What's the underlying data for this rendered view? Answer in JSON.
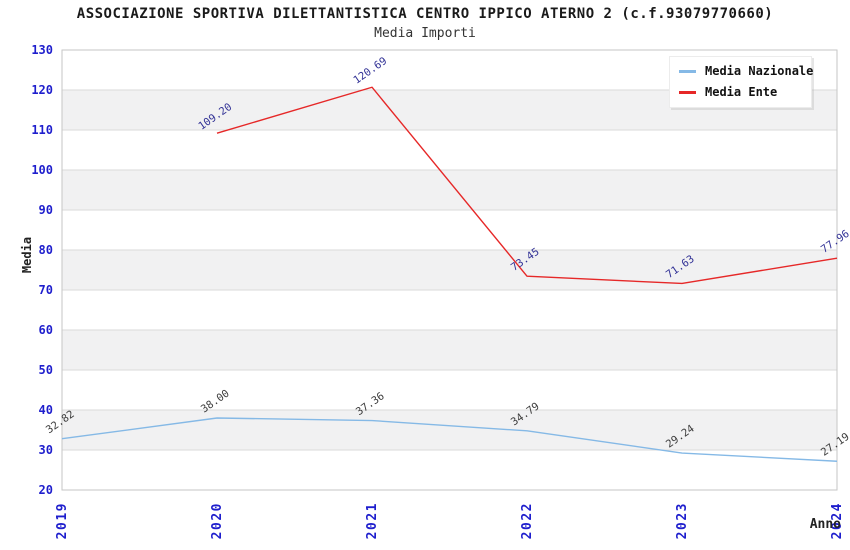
{
  "header": {
    "title": "ASSOCIAZIONE SPORTIVA DILETTANTISTICA CENTRO IPPICO ATERNO 2 (c.f.93079770660)",
    "subtitle": "Media Importi"
  },
  "axes": {
    "x_title": "Anno",
    "y_title": "Media"
  },
  "legend": {
    "position": "top-right",
    "items": [
      {
        "label": "Media Nazionale",
        "color": "#85b9e6"
      },
      {
        "label": "Media Ente",
        "color": "#e62828"
      }
    ]
  },
  "chart_data": {
    "type": "line",
    "title": "Media Importi",
    "xlabel": "Anno",
    "ylabel": "Media",
    "x": [
      "2019",
      "2020",
      "2021",
      "2022",
      "2023",
      "2024"
    ],
    "series": [
      {
        "name": "Media Nazionale",
        "color": "#85b9e6",
        "label_color": "#3c3c3c",
        "values": [
          32.82,
          38.0,
          37.36,
          34.79,
          29.24,
          27.19
        ],
        "labels": [
          "32.82",
          "38.00",
          "37.36",
          "34.79",
          "29.24",
          "27.19"
        ]
      },
      {
        "name": "Media Ente",
        "color": "#e62828",
        "label_color": "#323296",
        "values": [
          null,
          109.2,
          120.69,
          73.45,
          71.63,
          77.96
        ],
        "labels": [
          null,
          "109.20",
          "120.69",
          "73.45",
          "71.63",
          "77.96"
        ]
      }
    ],
    "ylim": [
      20,
      130
    ],
    "ytick_step": 10,
    "ytick_labels": [
      "20",
      "30",
      "40",
      "50",
      "60",
      "70",
      "80",
      "90",
      "100",
      "110",
      "120",
      "130"
    ],
    "grid": "banded",
    "legend_position": "top-right",
    "colors": {
      "band_fill": "#f1f1f2",
      "band_line": "#dadada",
      "plot_border": "#c6c6c6",
      "tick_label": "#1e1ecd",
      "plot_background": "#ffffff"
    }
  }
}
